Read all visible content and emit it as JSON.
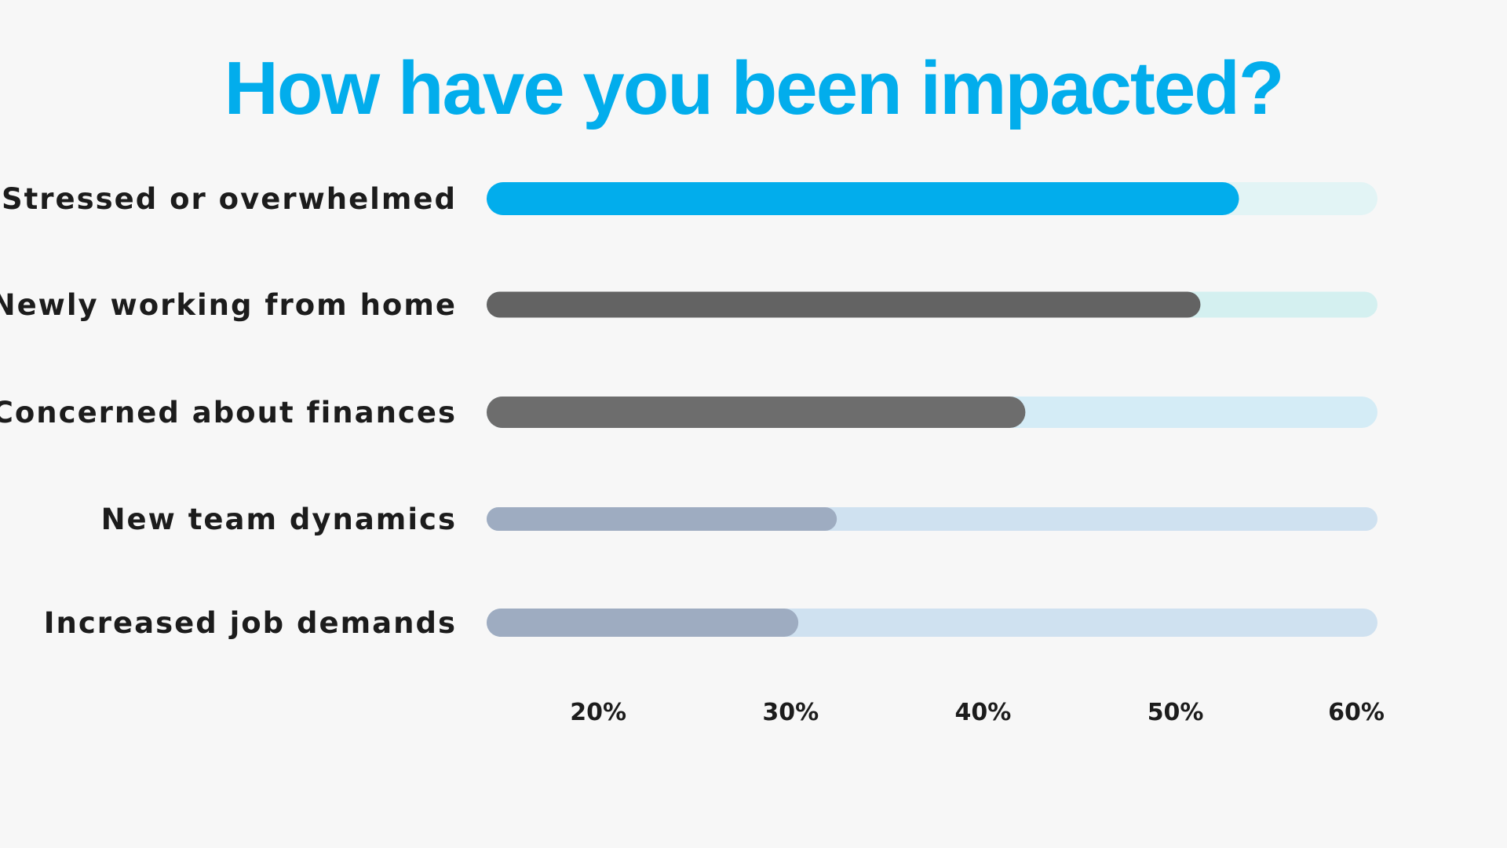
{
  "chart_data": {
    "type": "bar",
    "orientation": "horizontal",
    "title": "How have you been impacted?",
    "categories": [
      "Stressed or overwhelmed",
      "Newly working from home",
      "Concerned about finances",
      "New team dynamics",
      "Increased job demands"
    ],
    "values": [
      53.3,
      51.3,
      42.2,
      32.4,
      30.4
    ],
    "bar_colors": [
      "#02adec",
      "#636363",
      "#6d6d6d",
      "#9eacc1",
      "#9eacc1"
    ],
    "track_colors": [
      "#e2f4f5",
      "#d4f0f0",
      "#d4ecf6",
      "#cfe1f0",
      "#cfe1f0"
    ],
    "xlim": [
      14.2,
      60.5
    ],
    "xticks": [
      20,
      30,
      40,
      50,
      60
    ],
    "xtick_labels": [
      "20%",
      "30%",
      "40%",
      "50%",
      "60%"
    ],
    "grid": false,
    "legend": "none"
  },
  "colors": {
    "title": "#02adec",
    "label": "#1c1c1c",
    "background": "#f7f7f7"
  }
}
